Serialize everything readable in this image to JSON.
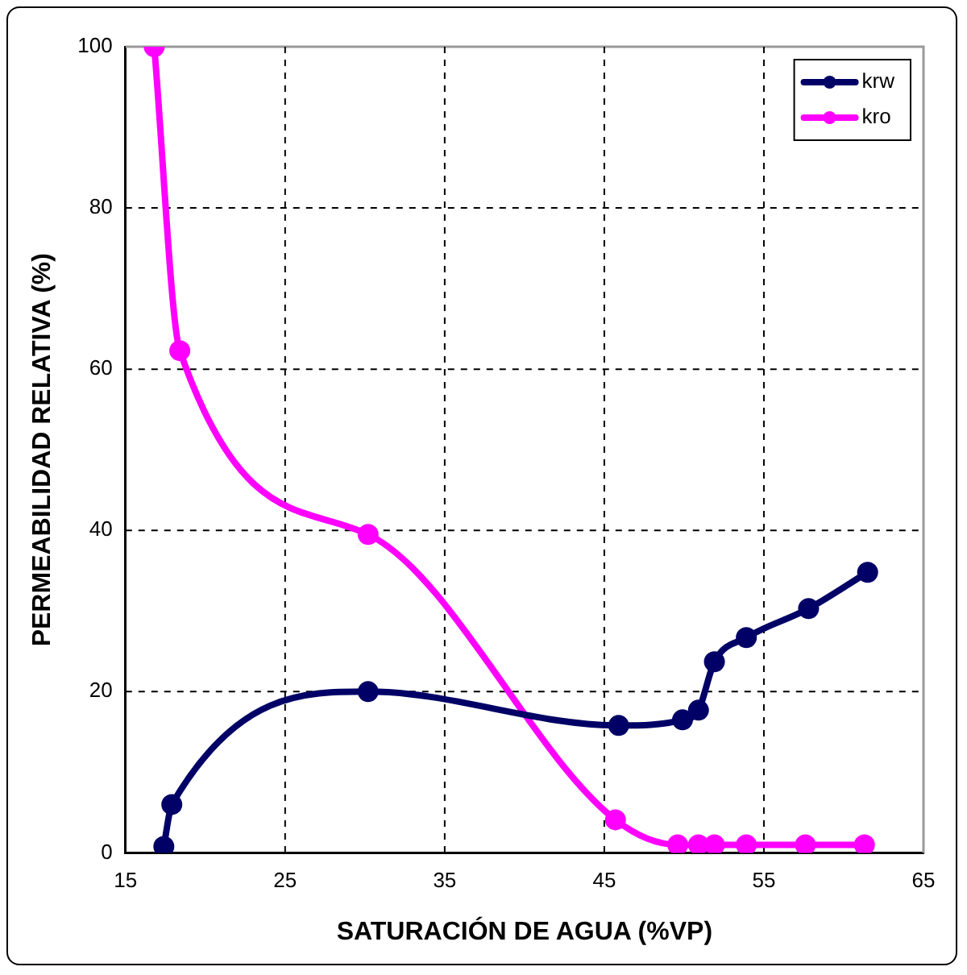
{
  "chart_data": {
    "type": "line",
    "xlabel": "SATURACIÓN DE AGUA (%VP)",
    "ylabel": "PERMEABILIDAD RELATIVA (%)",
    "xlim": [
      15,
      65
    ],
    "xticks": [
      15,
      25,
      35,
      45,
      55,
      65
    ],
    "ylim": [
      0,
      100
    ],
    "yticks": [
      0,
      20,
      40,
      60,
      80,
      100
    ],
    "grid": true,
    "legend": "top right",
    "marker": "circle",
    "line_style": "solid",
    "series": [
      {
        "name": "krw",
        "color": "#000066",
        "x": [
          17.4,
          17.9,
          30.2,
          45.9,
          49.9,
          50.9,
          51.9,
          53.9,
          57.8,
          61.5
        ],
        "values": [
          0.8,
          6,
          20,
          15.8,
          16.5,
          17.7,
          23.7,
          26.7,
          30.3,
          34.8
        ]
      },
      {
        "name": "kro",
        "color": "#ff00ff",
        "x": [
          16.8,
          18.4,
          30.2,
          45.7,
          49.6,
          50.9,
          51.9,
          53.9,
          57.6,
          61.3
        ],
        "values": [
          100,
          62.3,
          39.5,
          4.1,
          1,
          1,
          1,
          1,
          1,
          1
        ]
      }
    ]
  }
}
